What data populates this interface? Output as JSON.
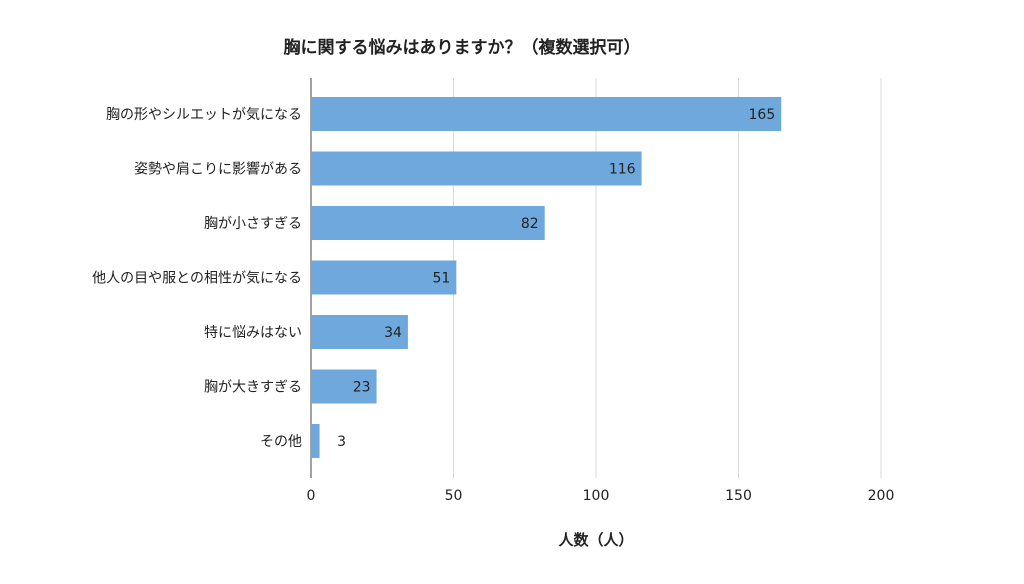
{
  "colors": {
    "bar": "#6fa8dc",
    "grid": "#d9d9d9",
    "text": "#222222",
    "background": "#ffffff"
  },
  "chart_data": {
    "type": "bar",
    "orientation": "horizontal",
    "title": "胸に関する悩みはありますか？（複数選択可）",
    "xlabel": "人数（人）",
    "ylabel": "",
    "categories": [
      "胸の形やシルエットが気になる",
      "姿勢や肩こりに影響がある",
      "胸が小さすぎる",
      "他人の目や服との相性が気になる",
      "特に悩みはない",
      "胸が大きすぎる",
      "その他"
    ],
    "values": [
      165,
      116,
      82,
      51,
      34,
      23,
      3
    ],
    "xlim": [
      0,
      200
    ],
    "xticks": [
      0,
      50,
      100,
      150,
      200
    ],
    "grid": true,
    "legend": "none",
    "data_labels": true
  }
}
